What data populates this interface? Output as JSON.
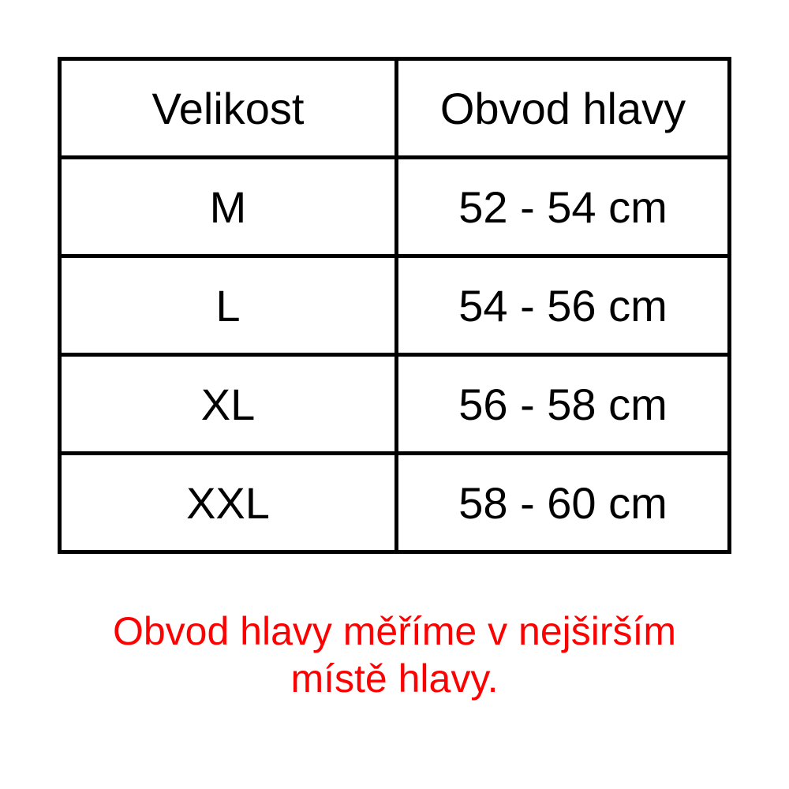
{
  "table": {
    "headers": [
      "Velikost",
      "Obvod hlavy"
    ],
    "rows": [
      [
        "M",
        "52 - 54 cm"
      ],
      [
        "L",
        "54 - 56 cm"
      ],
      [
        "XL",
        "56 - 58 cm"
      ],
      [
        "XXL",
        "58 - 60 cm"
      ]
    ]
  },
  "note": {
    "line1": "Obvod hlavy měříme v nejširším",
    "line2": "místě hlavy.",
    "color": "#ff0000"
  }
}
